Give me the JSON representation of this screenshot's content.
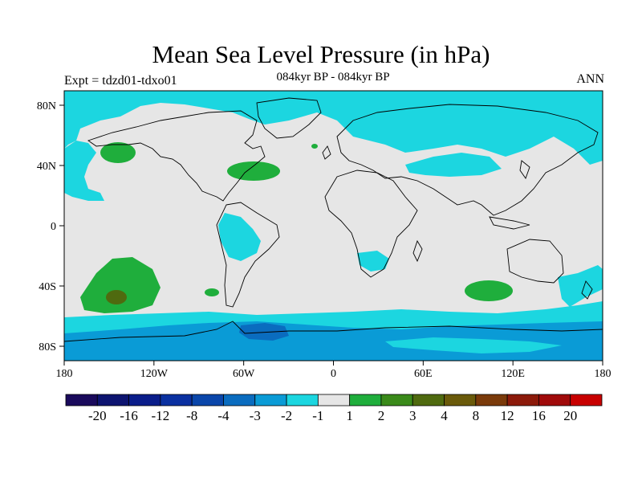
{
  "header": {
    "title": "Mean Sea Level Pressure (in hPa)",
    "subtitle": "084kyr BP - 084kyr BP",
    "expt": "Expt = tdzd01-tdxo01",
    "season": "ANN"
  },
  "axes": {
    "x_ticks": [
      "180",
      "120W",
      "60W",
      "0",
      "60E",
      "120E",
      "180"
    ],
    "y_ticks": [
      "80N",
      "40N",
      "0",
      "40S",
      "80S"
    ]
  },
  "colorbar": {
    "labels": [
      "-20",
      "-16",
      "-12",
      "-8",
      "-4",
      "-3",
      "-2",
      "-1",
      "1",
      "2",
      "3",
      "4",
      "8",
      "12",
      "16",
      "20"
    ],
    "colors": [
      "#1a0a5c",
      "#0d1470",
      "#0a1d8a",
      "#0a30a0",
      "#0a46aa",
      "#0a6cbf",
      "#0a9bd6",
      "#1cd6e0",
      "#e6e6e6",
      "#1fae3c",
      "#3a8a1a",
      "#4f6a0f",
      "#6a5a0a",
      "#7a3a0a",
      "#8c1a0a",
      "#a00a0a",
      "#c80000"
    ]
  },
  "map_colors": {
    "neutral": "#e6e6e6",
    "light_negative": "#1cd6e0",
    "mid_negative": "#0a9bd6",
    "strong_negative": "#0a6cbf",
    "positive": "#1fae3c",
    "strong_positive": "#4f6a0f"
  }
}
